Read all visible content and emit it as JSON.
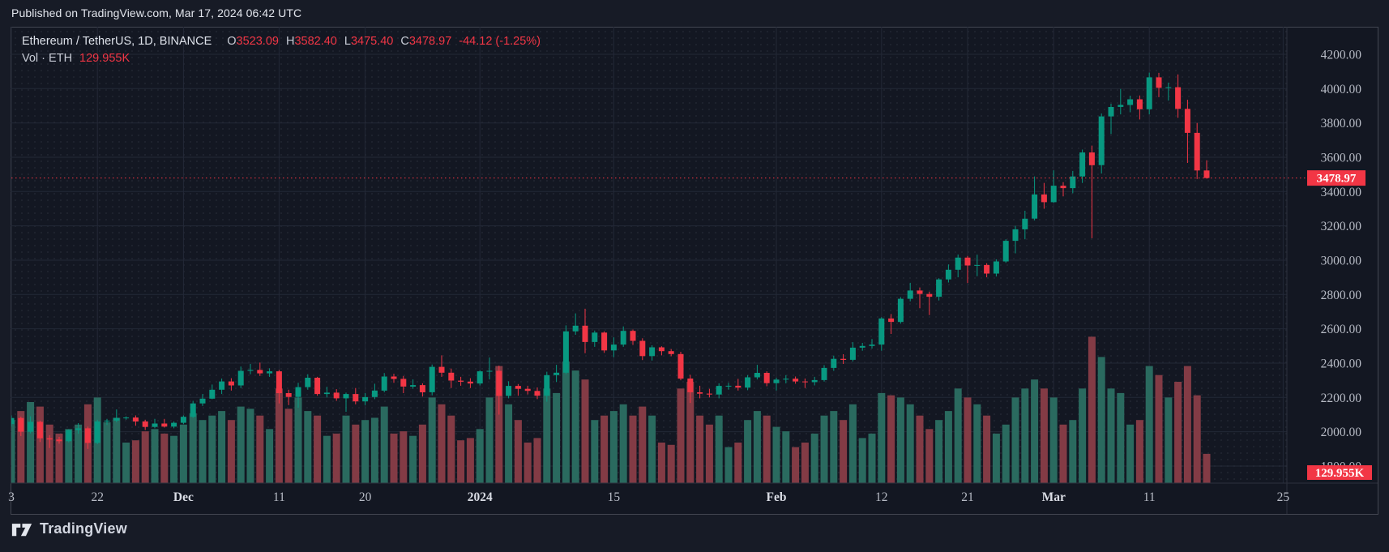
{
  "published_bar": {
    "text": "Published on TradingView.com, Mar 17, 2024 06:42 UTC"
  },
  "header": {
    "title": "Ethereum / TetherUS, 1D, BINANCE",
    "ohlc": {
      "o_label": "O",
      "o_value": "3523.09",
      "h_label": "H",
      "h_value": "3582.40",
      "l_label": "L",
      "l_value": "3475.40",
      "c_label": "C",
      "c_value": "3478.97",
      "change": "-44.12 (-1.25%)"
    },
    "volume_row": {
      "label": "Vol · ETH",
      "value": "129.955K"
    }
  },
  "footer": {
    "brand": "TradingView"
  },
  "colors": {
    "background": "#171b26",
    "panel": "#131722",
    "panel_border": "#434651",
    "grid": "#232836",
    "axis_line": "#2c313d",
    "up": "#089981",
    "down": "#f23645",
    "volume_up": "#2a6a5f",
    "volume_down": "#833b45",
    "badge": "#f23645",
    "axis_text": "#b8bcc6"
  },
  "chart_data": {
    "type": "candlestick",
    "title": "Ethereum / TetherUS, 1D, BINANCE",
    "legend": [
      "price candles",
      "volume"
    ],
    "grid": "on",
    "price_axis": {
      "side": "right",
      "ticks": [
        "4200.00",
        "4000.00",
        "3800.00",
        "3600.00",
        "3400.00",
        "3200.00",
        "3000.00",
        "2800.00",
        "2600.00",
        "2400.00",
        "2200.00",
        "2000.00",
        "1800.00"
      ],
      "tick_values": [
        4200,
        4000,
        3800,
        3600,
        3400,
        3200,
        3000,
        2800,
        2600,
        2400,
        2200,
        2000,
        1800
      ],
      "visible_range": [
        1750,
        4250
      ],
      "last_price": 3478.97,
      "last_price_label": "3478.97"
    },
    "time_axis": {
      "labels": [
        {
          "text": "3",
          "index": 0
        },
        {
          "text": "22",
          "index": 9
        },
        {
          "text": "Dec",
          "index": 18,
          "major": true
        },
        {
          "text": "11",
          "index": 28
        },
        {
          "text": "20",
          "index": 37
        },
        {
          "text": "2024",
          "index": 49,
          "major": true
        },
        {
          "text": "15",
          "index": 63
        },
        {
          "text": "Feb",
          "index": 80,
          "major": true
        },
        {
          "text": "12",
          "index": 91
        },
        {
          "text": "21",
          "index": 100
        },
        {
          "text": "Mar",
          "index": 109,
          "major": true
        },
        {
          "text": "11",
          "index": 119
        },
        {
          "text": "25",
          "index": 133
        }
      ]
    },
    "volume": {
      "label": "Vol · ETH",
      "last_value_k": 129.955,
      "last_label": "129.955K"
    },
    "candles": {
      "columns": [
        "date",
        "open",
        "high",
        "low",
        "close",
        "volume_k"
      ],
      "rows": [
        [
          "Nov 13",
          2045,
          2095,
          2030,
          2080,
          280
        ],
        [
          "Nov 14",
          2080,
          2088,
          1975,
          2000,
          320
        ],
        [
          "Nov 15",
          2000,
          2090,
          1990,
          2058,
          360
        ],
        [
          "Nov 16",
          2058,
          2065,
          1940,
          1962,
          340
        ],
        [
          "Nov 17",
          1962,
          1980,
          1905,
          1955,
          260
        ],
        [
          "Nov 18",
          1955,
          1970,
          1930,
          1945,
          220
        ],
        [
          "Nov 19",
          1945,
          2015,
          1938,
          2010,
          240
        ],
        [
          "Nov 20",
          2010,
          2050,
          1988,
          2020,
          260
        ],
        [
          "Nov 21",
          2020,
          2030,
          1900,
          1935,
          350
        ],
        [
          "Nov 22",
          1935,
          2070,
          1928,
          2060,
          380
        ],
        [
          "Nov 23",
          2060,
          2075,
          2040,
          2065,
          270
        ],
        [
          "Nov 24",
          2065,
          2130,
          2055,
          2080,
          290
        ],
        [
          "Nov 25",
          2080,
          2090,
          2070,
          2083,
          180
        ],
        [
          "Nov 26",
          2083,
          2095,
          2035,
          2060,
          190
        ],
        [
          "Nov 27",
          2060,
          2070,
          2010,
          2028,
          230
        ],
        [
          "Nov 28",
          2028,
          2075,
          2020,
          2048,
          240
        ],
        [
          "Nov 29",
          2048,
          2075,
          2025,
          2030,
          220
        ],
        [
          "Nov 30",
          2030,
          2060,
          2020,
          2052,
          210
        ],
        [
          "Dec 1",
          2052,
          2095,
          2045,
          2087,
          260
        ],
        [
          "Dec 2",
          2087,
          2180,
          2080,
          2165,
          310
        ],
        [
          "Dec 3",
          2165,
          2220,
          2150,
          2193,
          280
        ],
        [
          "Dec 4",
          2193,
          2275,
          2190,
          2245,
          300
        ],
        [
          "Dec 5",
          2245,
          2310,
          2220,
          2293,
          320
        ],
        [
          "Dec 6",
          2293,
          2312,
          2240,
          2270,
          280
        ],
        [
          "Dec 7",
          2270,
          2380,
          2255,
          2355,
          340
        ],
        [
          "Dec 8",
          2355,
          2395,
          2335,
          2360,
          330
        ],
        [
          "Dec 9",
          2360,
          2403,
          2325,
          2340,
          300
        ],
        [
          "Dec 10",
          2340,
          2370,
          2320,
          2352,
          240
        ],
        [
          "Dec 11",
          2352,
          2360,
          2165,
          2225,
          420
        ],
        [
          "Dec 12",
          2225,
          2245,
          2155,
          2203,
          330
        ],
        [
          "Dec 13",
          2203,
          2285,
          2140,
          2260,
          380
        ],
        [
          "Dec 14",
          2260,
          2335,
          2245,
          2315,
          320
        ],
        [
          "Dec 15",
          2315,
          2320,
          2210,
          2220,
          300
        ],
        [
          "Dec 16",
          2220,
          2262,
          2200,
          2228,
          210
        ],
        [
          "Dec 17",
          2228,
          2248,
          2180,
          2195,
          220
        ],
        [
          "Dec 18",
          2195,
          2228,
          2116,
          2220,
          300
        ],
        [
          "Dec 19",
          2220,
          2255,
          2160,
          2177,
          260
        ],
        [
          "Dec 20",
          2177,
          2225,
          2155,
          2202,
          280
        ],
        [
          "Dec 21",
          2202,
          2280,
          2190,
          2240,
          290
        ],
        [
          "Dec 22",
          2240,
          2342,
          2230,
          2322,
          340
        ],
        [
          "Dec 23",
          2322,
          2338,
          2285,
          2308,
          220
        ],
        [
          "Dec 24",
          2308,
          2325,
          2225,
          2263,
          230
        ],
        [
          "Dec 25",
          2263,
          2305,
          2250,
          2272,
          210
        ],
        [
          "Dec 26",
          2272,
          2282,
          2205,
          2230,
          260
        ],
        [
          "Dec 27",
          2230,
          2392,
          2212,
          2378,
          380
        ],
        [
          "Dec 28",
          2378,
          2445,
          2320,
          2344,
          350
        ],
        [
          "Dec 29",
          2344,
          2368,
          2255,
          2298,
          300
        ],
        [
          "Dec 30",
          2298,
          2320,
          2268,
          2292,
          190
        ],
        [
          "Dec 31",
          2292,
          2312,
          2255,
          2281,
          200
        ],
        [
          "Jan 1",
          2281,
          2358,
          2270,
          2352,
          240
        ],
        [
          "Jan 2",
          2352,
          2433,
          2305,
          2355,
          380
        ],
        [
          "Jan 3",
          2355,
          2385,
          2100,
          2209,
          520
        ],
        [
          "Jan 4",
          2209,
          2294,
          2195,
          2267,
          350
        ],
        [
          "Jan 5",
          2267,
          2278,
          2210,
          2250,
          280
        ],
        [
          "Jan 6",
          2250,
          2268,
          2218,
          2238,
          180
        ],
        [
          "Jan 7",
          2238,
          2258,
          2190,
          2210,
          200
        ],
        [
          "Jan 8",
          2210,
          2350,
          2175,
          2330,
          420
        ],
        [
          "Jan 9",
          2330,
          2390,
          2290,
          2344,
          400
        ],
        [
          "Jan 10",
          2344,
          2620,
          2335,
          2585,
          540
        ],
        [
          "Jan 11",
          2585,
          2690,
          2565,
          2618,
          500
        ],
        [
          "Jan 12",
          2618,
          2717,
          2458,
          2523,
          460
        ],
        [
          "Jan 13",
          2523,
          2590,
          2495,
          2578,
          280
        ],
        [
          "Jan 14",
          2578,
          2585,
          2460,
          2474,
          300
        ],
        [
          "Jan 15",
          2474,
          2550,
          2435,
          2508,
          320
        ],
        [
          "Jan 16",
          2508,
          2614,
          2495,
          2588,
          350
        ],
        [
          "Jan 17",
          2588,
          2596,
          2506,
          2530,
          300
        ],
        [
          "Jan 18",
          2530,
          2545,
          2418,
          2441,
          340
        ],
        [
          "Jan 19",
          2441,
          2504,
          2415,
          2492,
          300
        ],
        [
          "Jan 20",
          2492,
          2498,
          2445,
          2470,
          180
        ],
        [
          "Jan 21",
          2470,
          2482,
          2440,
          2453,
          170
        ],
        [
          "Jan 22",
          2453,
          2466,
          2300,
          2310,
          420
        ],
        [
          "Jan 23",
          2310,
          2332,
          2168,
          2230,
          450
        ],
        [
          "Jan 24",
          2230,
          2268,
          2195,
          2222,
          300
        ],
        [
          "Jan 25",
          2222,
          2250,
          2200,
          2217,
          260
        ],
        [
          "Jan 26",
          2217,
          2282,
          2195,
          2267,
          300
        ],
        [
          "Jan 27",
          2267,
          2285,
          2245,
          2268,
          160
        ],
        [
          "Jan 28",
          2268,
          2308,
          2240,
          2257,
          180
        ],
        [
          "Jan 29",
          2257,
          2330,
          2242,
          2317,
          280
        ],
        [
          "Jan 30",
          2317,
          2390,
          2305,
          2343,
          320
        ],
        [
          "Jan 31",
          2343,
          2352,
          2265,
          2283,
          300
        ],
        [
          "Feb 1",
          2283,
          2315,
          2240,
          2304,
          250
        ],
        [
          "Feb 2",
          2304,
          2330,
          2282,
          2309,
          230
        ],
        [
          "Feb 3",
          2309,
          2322,
          2280,
          2293,
          160
        ],
        [
          "Feb 4",
          2293,
          2310,
          2255,
          2289,
          180
        ],
        [
          "Feb 5",
          2289,
          2320,
          2270,
          2301,
          220
        ],
        [
          "Feb 6",
          2301,
          2388,
          2292,
          2372,
          300
        ],
        [
          "Feb 7",
          2372,
          2444,
          2355,
          2425,
          320
        ],
        [
          "Feb 8",
          2425,
          2452,
          2395,
          2419,
          280
        ],
        [
          "Feb 9",
          2419,
          2522,
          2410,
          2490,
          350
        ],
        [
          "Feb 10",
          2490,
          2518,
          2472,
          2500,
          200
        ],
        [
          "Feb 11",
          2500,
          2540,
          2485,
          2508,
          220
        ],
        [
          "Feb 12",
          2508,
          2668,
          2472,
          2660,
          400
        ],
        [
          "Feb 13",
          2660,
          2686,
          2570,
          2640,
          390
        ],
        [
          "Feb 14",
          2640,
          2785,
          2630,
          2775,
          380
        ],
        [
          "Feb 15",
          2775,
          2868,
          2760,
          2823,
          350
        ],
        [
          "Feb 16",
          2823,
          2841,
          2720,
          2803,
          300
        ],
        [
          "Feb 17",
          2803,
          2816,
          2680,
          2787,
          240
        ],
        [
          "Feb 18",
          2787,
          2895,
          2765,
          2888,
          280
        ],
        [
          "Feb 19",
          2888,
          2975,
          2870,
          2944,
          320
        ],
        [
          "Feb 20",
          2944,
          3033,
          2900,
          3015,
          420
        ],
        [
          "Feb 21",
          3015,
          3025,
          2867,
          2969,
          380
        ],
        [
          "Feb 22",
          2969,
          3032,
          2907,
          2972,
          350
        ],
        [
          "Feb 23",
          2972,
          2982,
          2900,
          2922,
          300
        ],
        [
          "Feb 24",
          2922,
          3005,
          2905,
          2993,
          220
        ],
        [
          "Feb 25",
          2993,
          3122,
          2985,
          3113,
          260
        ],
        [
          "Feb 26",
          3113,
          3200,
          3040,
          3180,
          380
        ],
        [
          "Feb 27",
          3180,
          3288,
          3122,
          3242,
          420
        ],
        [
          "Feb 28",
          3242,
          3488,
          3232,
          3383,
          460
        ],
        [
          "Feb 29",
          3383,
          3450,
          3300,
          3338,
          420
        ],
        [
          "Mar 1",
          3338,
          3524,
          3335,
          3434,
          380
        ],
        [
          "Mar 2",
          3434,
          3455,
          3372,
          3420,
          260
        ],
        [
          "Mar 3",
          3420,
          3520,
          3390,
          3488,
          280
        ],
        [
          "Mar 4",
          3488,
          3645,
          3450,
          3628,
          420
        ],
        [
          "Mar 5",
          3628,
          3668,
          3128,
          3554,
          650
        ],
        [
          "Mar 6",
          3554,
          3855,
          3505,
          3838,
          560
        ],
        [
          "Mar 7",
          3838,
          3912,
          3735,
          3893,
          420
        ],
        [
          "Mar 8",
          3893,
          3998,
          3850,
          3905,
          400
        ],
        [
          "Mar 9",
          3905,
          3958,
          3862,
          3938,
          260
        ],
        [
          "Mar 10",
          3938,
          3960,
          3820,
          3880,
          280
        ],
        [
          "Mar 11",
          3880,
          4093,
          3850,
          4066,
          520
        ],
        [
          "Mar 12",
          4066,
          4092,
          3950,
          4005,
          480
        ],
        [
          "Mar 13",
          4005,
          4035,
          3930,
          4008,
          380
        ],
        [
          "Mar 14",
          4008,
          4083,
          3830,
          3882,
          450
        ],
        [
          "Mar 15",
          3882,
          3935,
          3567,
          3742,
          520
        ],
        [
          "Mar 16",
          3742,
          3800,
          3473,
          3523,
          390
        ],
        [
          "Mar 17",
          3523.09,
          3582.4,
          3475.4,
          3478.97,
          129.955
        ]
      ]
    }
  }
}
